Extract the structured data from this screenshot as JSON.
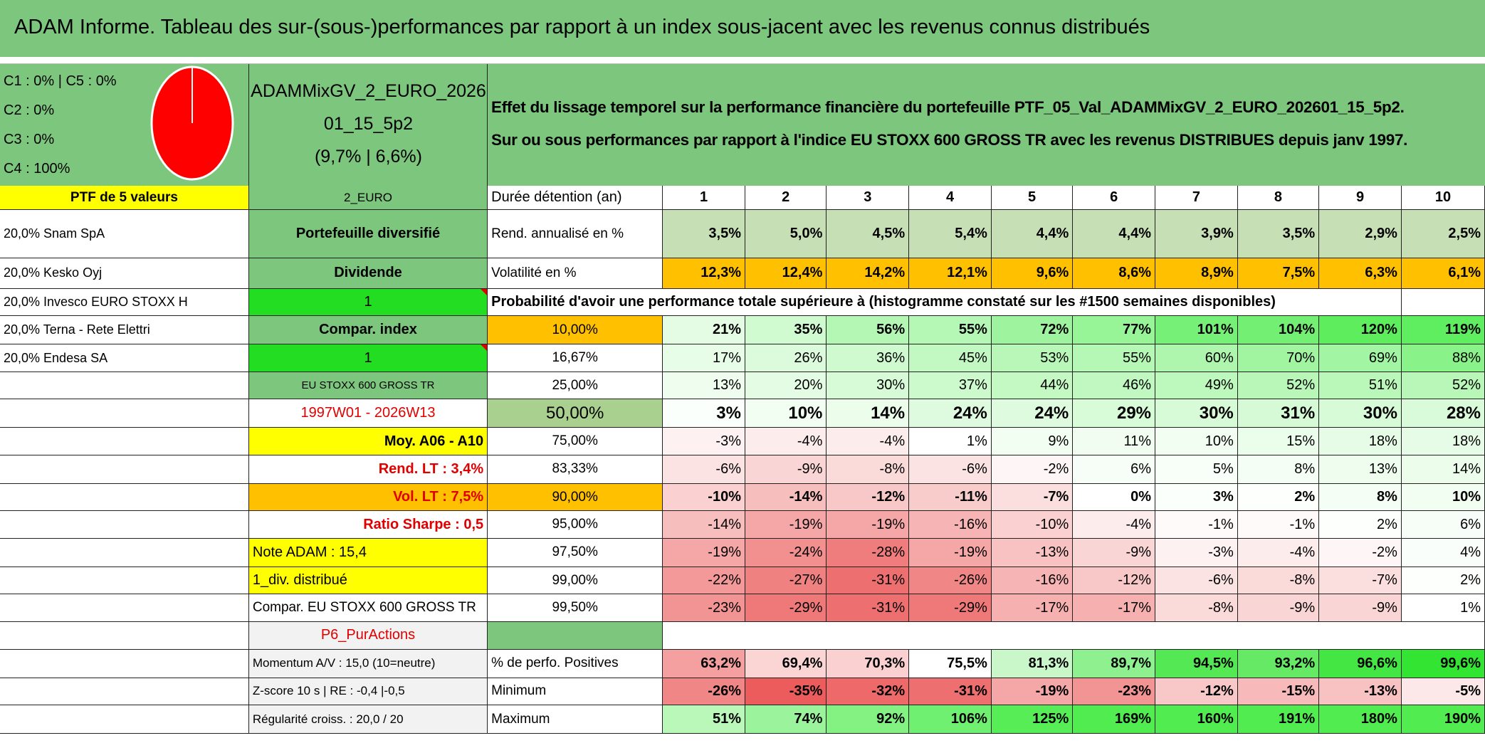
{
  "header": {
    "title": "ADAM Informe. Tableau des sur-(sous-)performances par rapport à un index sous-jacent avec les revenus connus distribués"
  },
  "summary": {
    "pie": {
      "legend": [
        "C1 : 0% | C5 : 0%",
        "C2 : 0%",
        "C3 : 0%",
        "C4 : 100%"
      ],
      "color": "#ff0000"
    },
    "fund": [
      "ADAMMixGV_2_EURO_2026",
      "01_15_5p2",
      "(9,7% | 6,6%)"
    ],
    "description": [
      "Effet du lissage temporel sur la performance financière du portefeuille PTF_05_Val_ADAMMixGV_2_EURO_202601_15_5p2.",
      "Sur ou sous performances par rapport à l'indice EU STOXX 600 GROSS TR avec les revenus DISTRIBUES depuis janv 1997."
    ]
  },
  "table": {
    "header": [
      "PTF de 5 valeurs",
      "2_EURO",
      "Durée détention (an)"
    ],
    "years": [
      "1",
      "2",
      "3",
      "4",
      "5",
      "6",
      "7",
      "8",
      "9",
      "10"
    ],
    "holdings": [
      "20,0% Snam SpA",
      "20,0% Kesko Oyj",
      "20,0% Invesco EURO STOXX H",
      "20,0% Terna - Rete Elettri",
      "20,0% Endesa SA"
    ],
    "col_b": [
      {
        "text": "Portefeuille diversifié",
        "fill": "#7dc67d",
        "text_color": "#000000"
      },
      {
        "text": "Dividende",
        "fill": "#7dc67d",
        "text_color": "#000000"
      },
      {
        "text": "1",
        "fill": "#22dd22",
        "text_color": "#000000"
      },
      {
        "text": "Compar. index",
        "fill": "#7dc67d",
        "text_color": "#000000"
      },
      {
        "text": "1",
        "fill": "#22dd22",
        "text_color": "#000000"
      },
      {
        "text": "EU STOXX 600 GROSS TR",
        "fill": "#7dc67d",
        "text_color": "#000000"
      },
      {
        "text": "1997W01 - 2026W13",
        "fill": "#ffffff",
        "text_color": "#e00000"
      },
      {
        "text": "Moy. A06 - A10",
        "fill": "#ffff00",
        "text_color": "#000000"
      },
      {
        "text": "Rend. LT : 3,4%",
        "fill": "#ffffff",
        "text_color": "#e00000"
      },
      {
        "text": "Vol. LT : 7,5%",
        "fill": "#ffc000",
        "text_color": "#e00000"
      },
      {
        "text": "Ratio Sharpe : 0,5",
        "fill": "#ffffff",
        "text_color": "#e00000"
      },
      {
        "text": "Note ADAM : 15,4",
        "fill": "#ffff00",
        "text_color": "#000000"
      },
      {
        "text": "1_div. distribué",
        "fill": "#ffff00",
        "text_color": "#000000"
      },
      {
        "text": "Compar. EU STOXX 600 GROSS TR",
        "fill": "#ffffff",
        "text_color": "#000000"
      },
      {
        "text": "P6_PurActions",
        "fill": "#f2f2f2",
        "text_color": "#e00000"
      },
      {
        "text": "Momentum A/V : 15,0 (10=neutre)",
        "fill": "#f2f2f2",
        "text_color": "#000000"
      },
      {
        "text": "Z-score 10 s | RE : -0,4 |-0,5",
        "fill": "#f2f2f2",
        "text_color": "#000000"
      },
      {
        "text": "Régularité croiss. : 20,0 / 20",
        "fill": "#f2f2f2",
        "text_color": "#000000"
      }
    ],
    "probability_title": "Probabilité d'avoir une performance totale supérieure à (histogramme constaté sur les #1500 semaines disponibles)",
    "rows": [
      {
        "label": "Rend. annualisé en %",
        "values": [
          "3,5%",
          "5,0%",
          "4,5%",
          "5,4%",
          "4,4%",
          "4,4%",
          "3,9%",
          "3,5%",
          "2,9%",
          "2,5%"
        ],
        "fill": "#c6dfb4"
      },
      {
        "label": "Volatilité en %",
        "values": [
          "12,3%",
          "12,4%",
          "14,2%",
          "12,1%",
          "9,6%",
          "8,6%",
          "8,9%",
          "7,5%",
          "6,3%",
          "6,1%"
        ],
        "fill": "#ffc000"
      },
      {
        "label": "10,00%",
        "values": [
          "21%",
          "35%",
          "56%",
          "55%",
          "72%",
          "77%",
          "101%",
          "104%",
          "120%",
          "119%"
        ],
        "label_fill": "#ffc000"
      },
      {
        "label": "16,67%",
        "values": [
          "17%",
          "26%",
          "36%",
          "45%",
          "53%",
          "55%",
          "60%",
          "70%",
          "69%",
          "88%"
        ]
      },
      {
        "label": "25,00%",
        "values": [
          "13%",
          "20%",
          "30%",
          "37%",
          "44%",
          "46%",
          "49%",
          "52%",
          "51%",
          "52%"
        ]
      },
      {
        "label": "50,00%",
        "values": [
          "3%",
          "10%",
          "14%",
          "24%",
          "24%",
          "29%",
          "30%",
          "31%",
          "30%",
          "28%"
        ],
        "label_fill": "#a9d08e"
      },
      {
        "label": "75,00%",
        "values": [
          "-3%",
          "-4%",
          "-4%",
          "1%",
          "9%",
          "11%",
          "10%",
          "15%",
          "18%",
          "18%"
        ]
      },
      {
        "label": "83,33%",
        "values": [
          "-6%",
          "-9%",
          "-8%",
          "-6%",
          "-2%",
          "6%",
          "5%",
          "8%",
          "13%",
          "14%"
        ]
      },
      {
        "label": "90,00%",
        "values": [
          "-10%",
          "-14%",
          "-12%",
          "-11%",
          "-7%",
          "0%",
          "3%",
          "2%",
          "8%",
          "10%"
        ],
        "label_fill": "#ffc000"
      },
      {
        "label": "95,00%",
        "values": [
          "-14%",
          "-19%",
          "-19%",
          "-16%",
          "-10%",
          "-4%",
          "-1%",
          "-1%",
          "2%",
          "6%"
        ]
      },
      {
        "label": "97,50%",
        "values": [
          "-19%",
          "-24%",
          "-28%",
          "-19%",
          "-13%",
          "-9%",
          "-3%",
          "-4%",
          "-2%",
          "4%"
        ]
      },
      {
        "label": "99,00%",
        "values": [
          "-22%",
          "-27%",
          "-31%",
          "-26%",
          "-16%",
          "-12%",
          "-6%",
          "-8%",
          "-7%",
          "2%"
        ]
      },
      {
        "label": "99,50%",
        "values": [
          "-23%",
          "-29%",
          "-31%",
          "-29%",
          "-17%",
          "-17%",
          "-8%",
          "-9%",
          "-9%",
          "1%"
        ]
      },
      {
        "label": "% de perfo. Positives",
        "values": [
          "63,2%",
          "69,4%",
          "70,3%",
          "75,5%",
          "81,3%",
          "89,7%",
          "94,5%",
          "93,2%",
          "96,6%",
          "99,6%"
        ],
        "colors": [
          "#f4a0a0",
          "#fbd4d4",
          "#fad0d0",
          "#ffffff",
          "#c9f7c9",
          "#8ef08e",
          "#55e855",
          "#66ea66",
          "#44e644",
          "#33e433"
        ]
      },
      {
        "label": "Minimum",
        "values": [
          "-26%",
          "-35%",
          "-32%",
          "-31%",
          "-19%",
          "-23%",
          "-12%",
          "-15%",
          "-13%",
          "-5%"
        ]
      },
      {
        "label": "Maximum",
        "values": [
          "51%",
          "74%",
          "92%",
          "106%",
          "125%",
          "169%",
          "160%",
          "191%",
          "180%",
          "190%"
        ]
      }
    ]
  }
}
